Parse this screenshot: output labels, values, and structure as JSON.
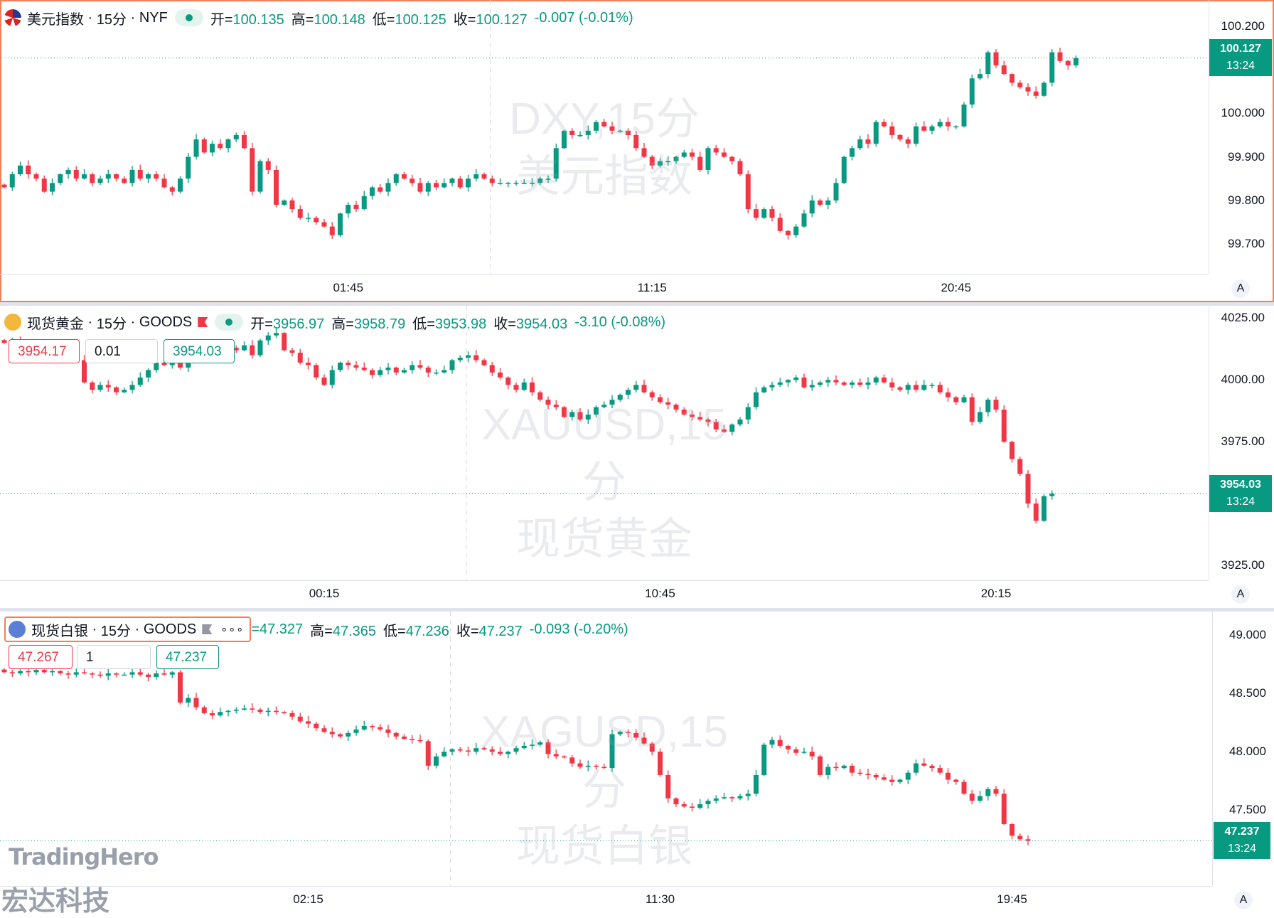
{
  "colors": {
    "up": "#089981",
    "down": "#f23645",
    "grid": "#e0e3eb",
    "selection": "#f0805a"
  },
  "panes": [
    {
      "symbol": "美元指数",
      "interval": "15分",
      "exchange": "NYF",
      "logo_icon": "us-flag-icon",
      "ohlc": [
        {
          "k": "开=",
          "v": "100.135"
        },
        {
          "k": "高=",
          "v": "100.148"
        },
        {
          "k": "低=",
          "v": "100.125"
        },
        {
          "k": "收=",
          "v": "100.127"
        }
      ],
      "change": "-0.007 (-0.01%)",
      "watermark": [
        "DXY,15分",
        "美元指数"
      ],
      "last_price": "100.127",
      "countdown": "13:24",
      "axis_button": "A"
    },
    {
      "symbol": "现货黄金",
      "interval": "15分",
      "exchange": "GOODS",
      "logo_icon": "gold-bars-icon",
      "ohlc": [
        {
          "k": "开=",
          "v": "3956.97"
        },
        {
          "k": "高=",
          "v": "3958.79"
        },
        {
          "k": "低=",
          "v": "3953.98"
        },
        {
          "k": "收=",
          "v": "3954.03"
        }
      ],
      "change": "-3.10 (-0.08%)",
      "watermark": [
        "XAUUSD,15分",
        "现货黄金"
      ],
      "last_price": "3954.03",
      "countdown": "13:24",
      "order": {
        "sell": "3954.17",
        "qty": "0.01",
        "buy": "3954.03"
      },
      "axis_button": "A"
    },
    {
      "symbol": "现货白银",
      "interval": "15分",
      "exchange": "GOODS",
      "logo_icon": "silver-bars-icon",
      "more_label": "∘∘∘",
      "ohlc": [
        {
          "k": "",
          "v": "=47.327"
        },
        {
          "k": "高=",
          "v": "47.365"
        },
        {
          "k": "低=",
          "v": "47.236"
        },
        {
          "k": "收=",
          "v": "47.237"
        }
      ],
      "change": "-0.093 (-0.20%)",
      "watermark": [
        "XAGUSD,15分",
        "现货白银"
      ],
      "last_price": "47.237",
      "countdown": "13:24",
      "order": {
        "sell": "47.267",
        "qty": "1",
        "buy": "47.237"
      },
      "axis_button": "A"
    }
  ],
  "branding": {
    "line1": "TradingHero",
    "line2": "宏达科技"
  },
  "chart_data": [
    {
      "type": "candlestick",
      "title": "美元指数 · 15分 · NYF",
      "y_ticks": [
        "100.200",
        "100.000",
        "99.900",
        "99.800",
        "99.700"
      ],
      "y_tick_values": [
        100.2,
        100.0,
        99.9,
        99.8,
        99.7
      ],
      "ylim": [
        99.63,
        100.26
      ],
      "x_ticks": [
        "01:45",
        "11:15",
        "20:45"
      ],
      "x_tick_index": [
        43,
        81,
        119
      ],
      "last": 100.127,
      "closes": [
        99.83,
        99.86,
        99.88,
        99.86,
        99.85,
        99.82,
        99.84,
        99.86,
        99.87,
        99.85,
        99.86,
        99.84,
        99.85,
        99.86,
        99.85,
        99.84,
        99.87,
        99.85,
        99.86,
        99.85,
        99.83,
        99.82,
        99.85,
        99.9,
        99.94,
        99.91,
        99.93,
        99.92,
        99.94,
        99.95,
        99.92,
        99.82,
        99.89,
        99.87,
        99.79,
        99.8,
        99.78,
        99.76,
        99.76,
        99.75,
        99.74,
        99.72,
        99.77,
        99.79,
        99.78,
        99.81,
        99.83,
        99.82,
        99.84,
        99.86,
        99.85,
        99.84,
        99.82,
        99.84,
        99.83,
        99.84,
        99.85,
        99.83,
        99.85,
        99.86,
        99.85,
        99.84,
        99.84,
        99.84,
        99.84,
        99.84,
        99.84,
        99.85,
        99.85,
        99.92,
        99.96,
        99.95,
        99.95,
        99.96,
        99.98,
        99.97,
        99.96,
        99.96,
        99.95,
        99.92,
        99.9,
        99.88,
        99.89,
        99.89,
        99.9,
        99.91,
        99.9,
        99.87,
        99.92,
        99.91,
        99.9,
        99.89,
        99.86,
        99.78,
        99.76,
        99.78,
        99.76,
        99.73,
        99.72,
        99.74,
        99.77,
        99.8,
        99.79,
        99.8,
        99.84,
        99.9,
        99.92,
        99.94,
        99.93,
        99.98,
        99.97,
        99.95,
        99.94,
        99.93,
        99.97,
        99.96,
        99.97,
        99.98,
        99.97,
        99.97,
        100.02,
        100.08,
        100.09,
        100.14,
        100.11,
        100.09,
        100.07,
        100.06,
        100.05,
        100.04,
        100.07,
        100.14,
        100.12,
        100.11,
        100.127
      ]
    },
    {
      "type": "candlestick",
      "title": "现货黄金 · 15分 · GOODS",
      "y_ticks": [
        "4025.00",
        "4000.00",
        "3975.00",
        "3925.00"
      ],
      "y_tick_values": [
        4025,
        4000,
        3975,
        3925
      ],
      "ylim": [
        3919,
        4030
      ],
      "x_ticks": [
        "00:15",
        "10:45",
        "20:15"
      ],
      "x_tick_index": [
        40,
        82,
        124
      ],
      "last": 3954.03,
      "closes": [
        4015,
        4016,
        4013,
        4014,
        4012,
        4013,
        4014,
        4013,
        4015,
        4008,
        3999,
        3996,
        3998,
        3997,
        3995,
        3996,
        3998,
        4001,
        4004,
        4007,
        4006,
        4009,
        4005,
        4008,
        4010,
        4012,
        4011,
        4014,
        4013,
        4012,
        4014,
        4010,
        4016,
        4018,
        4019,
        4012,
        4011,
        4007,
        4006,
        4001,
        3998,
        4004,
        4007,
        4006,
        4005,
        4004,
        4002,
        4004,
        4005,
        4003,
        4004,
        4006,
        4005,
        4003,
        4003,
        4004,
        4008,
        4009,
        4010,
        4008,
        4006,
        4003,
        4001,
        3998,
        3996,
        3999,
        3995,
        3992,
        3990,
        3989,
        3985,
        3987,
        3984,
        3986,
        3989,
        3990,
        3992,
        3994,
        3996,
        3998,
        3995,
        3993,
        3991,
        3990,
        3988,
        3986,
        3985,
        3984,
        3983,
        3980,
        3979,
        3982,
        3984,
        3989,
        3995,
        3997,
        3998,
        3999,
        4000,
        4001,
        3997,
        3998,
        3999,
        4000,
        3999,
        3998,
        3999,
        3998,
        3999,
        4001,
        3999,
        3997,
        3996,
        3998,
        3996,
        3998,
        3998,
        3995,
        3993,
        3991,
        3993,
        3983,
        3987,
        3992,
        3988,
        3975,
        3968,
        3962,
        3950,
        3943,
        3953,
        3954.03
      ]
    },
    {
      "type": "candlestick",
      "title": "现货白银 · 15分 · GOODS",
      "y_ticks": [
        "49.000",
        "48.500",
        "48.000",
        "47.500"
      ],
      "y_tick_values": [
        49.0,
        48.5,
        48.0,
        47.5
      ],
      "ylim": [
        46.85,
        49.2
      ],
      "x_ticks": [
        "02:15",
        "11:30",
        "19:45"
      ],
      "x_tick_index": [
        38,
        82,
        126
      ],
      "last": 47.237,
      "closes": [
        48.68,
        48.67,
        48.69,
        48.68,
        48.7,
        48.68,
        48.69,
        48.67,
        48.66,
        48.68,
        48.67,
        48.66,
        48.65,
        48.67,
        48.66,
        48.66,
        48.68,
        48.66,
        48.64,
        48.67,
        48.66,
        48.68,
        48.42,
        48.46,
        48.38,
        48.33,
        48.31,
        48.34,
        48.35,
        48.36,
        48.37,
        48.36,
        48.34,
        48.35,
        48.34,
        48.33,
        48.3,
        48.26,
        48.24,
        48.2,
        48.17,
        48.15,
        48.13,
        48.16,
        48.19,
        48.22,
        48.21,
        48.19,
        48.16,
        48.13,
        48.11,
        48.1,
        48.09,
        47.88,
        47.96,
        48.0,
        48.02,
        48.01,
        48.0,
        48.03,
        48.02,
        48.0,
        47.98,
        48.0,
        48.03,
        48.05,
        48.06,
        48.08,
        47.98,
        47.96,
        47.95,
        47.9,
        47.87,
        47.88,
        47.87,
        47.86,
        48.15,
        48.17,
        48.16,
        48.12,
        48.07,
        48.0,
        47.8,
        47.6,
        47.55,
        47.53,
        47.52,
        47.55,
        47.58,
        47.6,
        47.61,
        47.6,
        47.62,
        47.64,
        47.8,
        48.06,
        48.1,
        48.05,
        48.02,
        47.99,
        48.0,
        47.96,
        47.8,
        47.87,
        47.86,
        47.88,
        47.82,
        47.81,
        47.8,
        47.78,
        47.76,
        47.74,
        47.76,
        47.82,
        47.9,
        47.88,
        47.86,
        47.82,
        47.76,
        47.74,
        47.64,
        47.58,
        47.62,
        47.68,
        47.64,
        47.38,
        47.28,
        47.25,
        47.237
      ]
    }
  ]
}
